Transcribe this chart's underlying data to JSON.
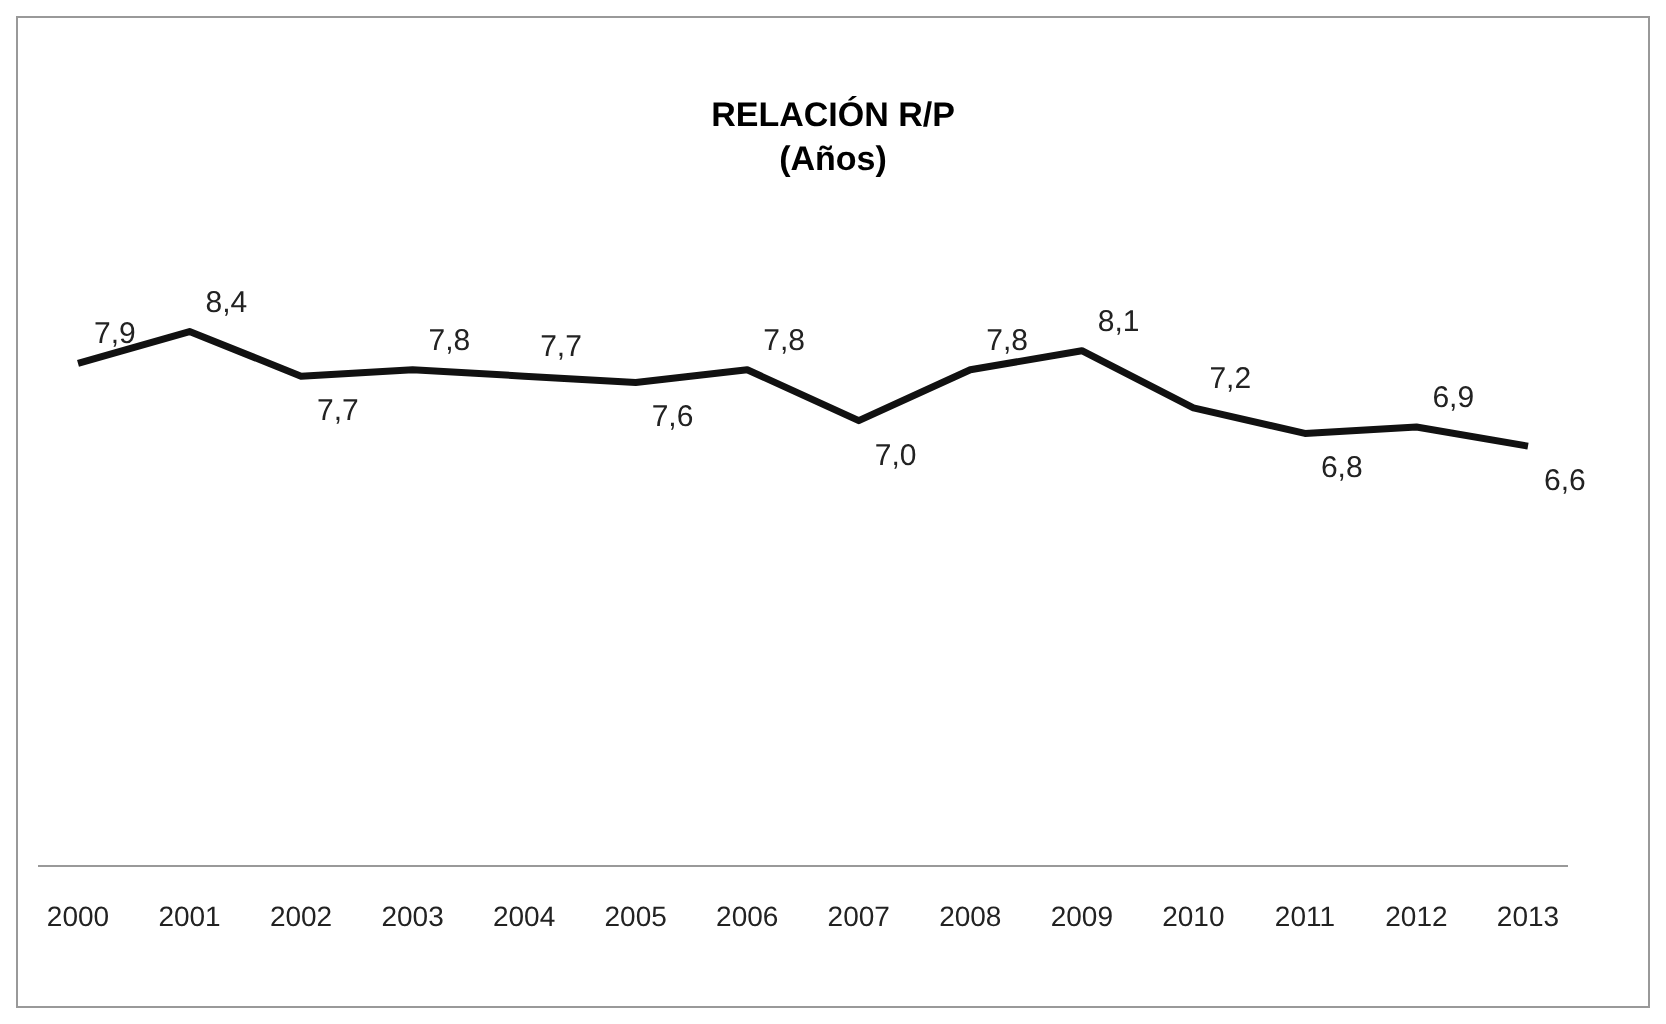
{
  "chart_data": {
    "type": "line",
    "title": "RELACIÓN R/P",
    "subtitle": "(Años)",
    "categories": [
      "2000",
      "2001",
      "2002",
      "2003",
      "2004",
      "2005",
      "2006",
      "2007",
      "2008",
      "2009",
      "2010",
      "2011",
      "2012",
      "2013"
    ],
    "series": [
      {
        "color": "#111111",
        "values": [
          7.9,
          8.4,
          7.7,
          7.8,
          7.7,
          7.6,
          7.8,
          7.0,
          7.8,
          8.1,
          7.2,
          6.8,
          6.9,
          6.6
        ],
        "value_labels": [
          "7,9",
          "8,4",
          "7,7",
          "7,8",
          "7,7",
          "7,6",
          "7,8",
          "7,0",
          "7,8",
          "8,1",
          "7,2",
          "6,8",
          "6,9",
          "6,6"
        ]
      }
    ],
    "grid": false,
    "legend": false,
    "marker": "none",
    "line_style": "solid"
  }
}
